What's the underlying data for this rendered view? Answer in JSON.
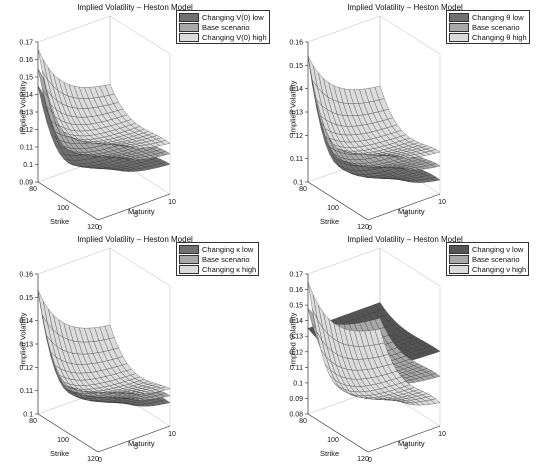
{
  "chart_data": [
    {
      "type": "surface3d",
      "title": "Implied Volatility – Heston Model",
      "zlabel": "Implied Volatility",
      "xlabel": "Strike",
      "ylabel": "Maturity",
      "strike_range": [
        80,
        120
      ],
      "maturity_range": [
        0,
        10
      ],
      "zlim": [
        0.09,
        0.17
      ],
      "strike_ticks": [
        "80",
        "100",
        "120"
      ],
      "maturity_ticks": [
        "0",
        "5",
        "10"
      ],
      "z_ticks": [
        "0.09",
        "0.1",
        "0.11",
        "0.12",
        "0.13",
        "0.14",
        "0.15",
        "0.16",
        "0.17"
      ],
      "legend_position": "top-right",
      "series": [
        {
          "name": "Changing V(0) low",
          "color": "#707070",
          "corner_iv": {
            "k80_t0": 0.145,
            "k80_t10": 0.118,
            "k120_t0": 0.125,
            "k120_t10": 0.107,
            "atm_min": 0.104
          }
        },
        {
          "name": "Base scenario",
          "color": "#a8a8a8",
          "corner_iv": {
            "k80_t0": 0.155,
            "k80_t10": 0.124,
            "k120_t0": 0.135,
            "k120_t10": 0.113,
            "atm_min": 0.11
          }
        },
        {
          "name": "Changing V(0) high",
          "color": "#dcdcdc",
          "corner_iv": {
            "k80_t0": 0.166,
            "k80_t10": 0.131,
            "k120_t0": 0.145,
            "k120_t10": 0.119,
            "atm_min": 0.117
          }
        }
      ]
    },
    {
      "type": "surface3d",
      "title": "Implied Volatility – Heston Model",
      "zlabel": "Implied Volatility",
      "xlabel": "Strike",
      "ylabel": "Maturity",
      "strike_range": [
        80,
        120
      ],
      "maturity_range": [
        0,
        10
      ],
      "zlim": [
        0.1,
        0.16
      ],
      "strike_ticks": [
        "80",
        "100",
        "120"
      ],
      "maturity_ticks": [
        "0",
        "5",
        "10"
      ],
      "z_ticks": [
        "0.1",
        "0.11",
        "0.12",
        "0.13",
        "0.14",
        "0.15",
        "0.16"
      ],
      "legend_position": "top-right",
      "series": [
        {
          "name": "Changing θ low",
          "color": "#707070",
          "corner_iv": {
            "k80_t0": 0.154,
            "k80_t10": 0.118,
            "k120_t0": 0.135,
            "k120_t10": 0.106,
            "atm_min": 0.104
          }
        },
        {
          "name": "Base scenario",
          "color": "#a8a8a8",
          "corner_iv": {
            "k80_t0": 0.154,
            "k80_t10": 0.124,
            "k120_t0": 0.135,
            "k120_t10": 0.112,
            "atm_min": 0.109
          }
        },
        {
          "name": "Changing θ high",
          "color": "#dcdcdc",
          "corner_iv": {
            "k80_t0": 0.154,
            "k80_t10": 0.13,
            "k120_t0": 0.135,
            "k120_t10": 0.118,
            "atm_min": 0.115
          }
        }
      ]
    },
    {
      "type": "surface3d",
      "title": "Implied Volatility – Heston Model",
      "zlabel": "Implied Volatility",
      "xlabel": "Strike",
      "ylabel": "Maturity",
      "strike_range": [
        80,
        120
      ],
      "maturity_range": [
        0,
        10
      ],
      "zlim": [
        0.1,
        0.16
      ],
      "strike_ticks": [
        "80",
        "100",
        "120"
      ],
      "maturity_ticks": [
        "0",
        "5",
        "10"
      ],
      "z_ticks": [
        "0.1",
        "0.11",
        "0.12",
        "0.13",
        "0.14",
        "0.15",
        "0.16"
      ],
      "legend_position": "top-right",
      "series": [
        {
          "name": "Changing κ low",
          "color": "#707070",
          "corner_iv": {
            "k80_t0": 0.153,
            "k80_t10": 0.121,
            "k120_t0": 0.134,
            "k120_t10": 0.11,
            "atm_min": 0.108
          }
        },
        {
          "name": "Base scenario",
          "color": "#a8a8a8",
          "corner_iv": {
            "k80_t0": 0.153,
            "k80_t10": 0.124,
            "k120_t0": 0.134,
            "k120_t10": 0.113,
            "atm_min": 0.11
          }
        },
        {
          "name": "Changing κ high",
          "color": "#dcdcdc",
          "corner_iv": {
            "k80_t0": 0.153,
            "k80_t10": 0.127,
            "k120_t0": 0.134,
            "k120_t10": 0.116,
            "atm_min": 0.112
          }
        }
      ]
    },
    {
      "type": "surface3d",
      "title": "Implied Volatility – Heston Model",
      "zlabel": "Implied Volatility",
      "xlabel": "Strike",
      "ylabel": "Maturity",
      "strike_range": [
        80,
        120
      ],
      "maturity_range": [
        0,
        10
      ],
      "zlim": [
        0.08,
        0.17
      ],
      "strike_ticks": [
        "80",
        "100",
        "120"
      ],
      "maturity_ticks": [
        "0",
        "5",
        "10"
      ],
      "z_ticks": [
        "0.08",
        "0.09",
        "0.1",
        "0.11",
        "0.12",
        "0.13",
        "0.14",
        "0.15",
        "0.16",
        "0.17"
      ],
      "legend_position": "top-right",
      "series": [
        {
          "name": "Changing ν low",
          "color": "#555555",
          "corner_iv": {
            "k80_t0": 0.135,
            "k80_t10": 0.135,
            "k120_t0": 0.135,
            "k120_t10": 0.128,
            "atm_min": 0.127
          }
        },
        {
          "name": "Base scenario",
          "color": "#a8a8a8",
          "corner_iv": {
            "k80_t0": 0.148,
            "k80_t10": 0.125,
            "k120_t0": 0.132,
            "k120_t10": 0.112,
            "atm_min": 0.11
          }
        },
        {
          "name": "Changing ν high",
          "color": "#dcdcdc",
          "corner_iv": {
            "k80_t0": 0.165,
            "k80_t10": 0.118,
            "k120_t0": 0.14,
            "k120_t10": 0.095,
            "atm_min": 0.093
          }
        }
      ]
    }
  ]
}
